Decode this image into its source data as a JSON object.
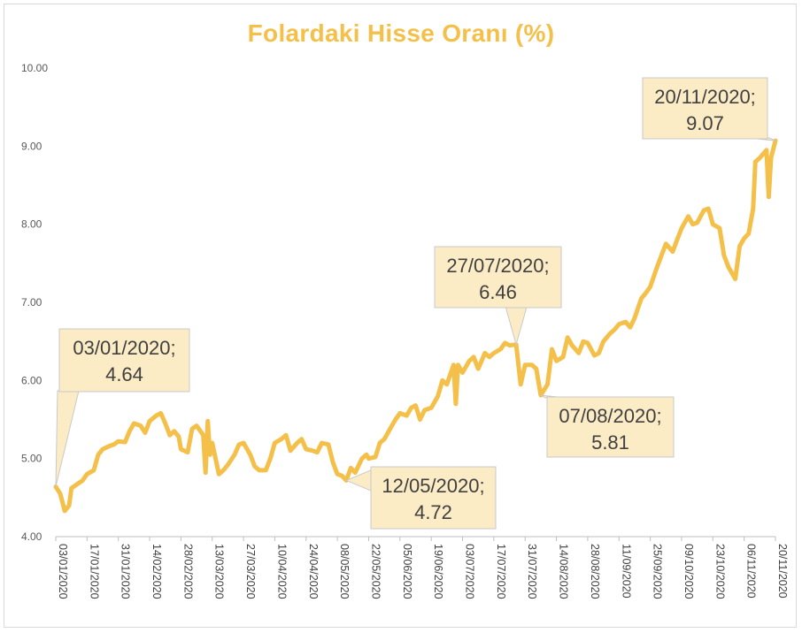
{
  "chart_data": {
    "type": "line",
    "title": "Folardaki Hisse Oranı (%)",
    "xlabel": "",
    "ylabel": "",
    "ylim": [
      4.0,
      10.0
    ],
    "yticks": [
      "4.00",
      "5.00",
      "6.00",
      "7.00",
      "8.00",
      "9.00",
      "10.00"
    ],
    "xticks": [
      "03/01/2020",
      "17/01/2020",
      "31/01/2020",
      "14/02/2020",
      "28/02/2020",
      "13/03/2020",
      "27/03/2020",
      "10/04/2020",
      "24/04/2020",
      "08/05/2020",
      "22/05/2020",
      "05/06/2020",
      "19/06/2020",
      "03/07/2020",
      "17/07/2020",
      "31/07/2020",
      "14/08/2020",
      "28/08/2020",
      "11/09/2020",
      "25/09/2020",
      "09/10/2020",
      "23/10/2020",
      "06/11/2020",
      "20/11/2020"
    ],
    "grid": false,
    "line_color": "#f4c04a",
    "series": [
      {
        "points": [
          [
            "03/01/2020",
            4.64
          ],
          [
            "05/01/2020",
            4.55
          ],
          [
            "07/01/2020",
            4.33
          ],
          [
            "09/01/2020",
            4.4
          ],
          [
            "10/01/2020",
            4.62
          ],
          [
            "13/01/2020",
            4.68
          ],
          [
            "15/01/2020",
            4.72
          ],
          [
            "17/01/2020",
            4.8
          ],
          [
            "20/01/2020",
            4.85
          ],
          [
            "22/01/2020",
            5.05
          ],
          [
            "24/01/2020",
            5.12
          ],
          [
            "27/01/2020",
            5.16
          ],
          [
            "29/01/2020",
            5.18
          ],
          [
            "31/01/2020",
            5.22
          ],
          [
            "03/02/2020",
            5.21
          ],
          [
            "05/02/2020",
            5.35
          ],
          [
            "07/02/2020",
            5.45
          ],
          [
            "10/02/2020",
            5.42
          ],
          [
            "12/02/2020",
            5.33
          ],
          [
            "14/02/2020",
            5.48
          ],
          [
            "17/02/2020",
            5.55
          ],
          [
            "19/02/2020",
            5.58
          ],
          [
            "21/02/2020",
            5.45
          ],
          [
            "23/02/2020",
            5.3
          ],
          [
            "25/02/2020",
            5.35
          ],
          [
            "27/02/2020",
            5.28
          ],
          [
            "28/02/2020",
            5.12
          ],
          [
            "02/03/2020",
            5.08
          ],
          [
            "04/03/2020",
            5.38
          ],
          [
            "06/03/2020",
            5.42
          ],
          [
            "09/03/2020",
            5.3
          ],
          [
            "10/03/2020",
            4.82
          ],
          [
            "11/03/2020",
            5.48
          ],
          [
            "12/03/2020",
            5.05
          ],
          [
            "13/03/2020",
            5.2
          ],
          [
            "16/03/2020",
            4.8
          ],
          [
            "18/03/2020",
            4.85
          ],
          [
            "20/03/2020",
            4.92
          ],
          [
            "23/03/2020",
            5.05
          ],
          [
            "25/03/2020",
            5.18
          ],
          [
            "27/03/2020",
            5.2
          ],
          [
            "30/03/2020",
            5.05
          ],
          [
            "01/04/2020",
            4.9
          ],
          [
            "03/04/2020",
            4.85
          ],
          [
            "06/04/2020",
            4.85
          ],
          [
            "08/04/2020",
            5.0
          ],
          [
            "10/04/2020",
            5.2
          ],
          [
            "13/04/2020",
            5.25
          ],
          [
            "15/04/2020",
            5.3
          ],
          [
            "17/04/2020",
            5.1
          ],
          [
            "20/04/2020",
            5.2
          ],
          [
            "22/04/2020",
            5.25
          ],
          [
            "24/04/2020",
            5.12
          ],
          [
            "27/04/2020",
            5.1
          ],
          [
            "29/04/2020",
            5.08
          ],
          [
            "01/05/2020",
            5.2
          ],
          [
            "04/05/2020",
            5.18
          ],
          [
            "06/05/2020",
            4.95
          ],
          [
            "08/05/2020",
            4.8
          ],
          [
            "10/05/2020",
            4.78
          ],
          [
            "12/05/2020",
            4.72
          ],
          [
            "14/05/2020",
            4.88
          ],
          [
            "16/05/2020",
            4.82
          ],
          [
            "19/05/2020",
            5.0
          ],
          [
            "21/05/2020",
            5.05
          ],
          [
            "22/05/2020",
            5.0
          ],
          [
            "25/05/2020",
            5.02
          ],
          [
            "27/05/2020",
            5.2
          ],
          [
            "29/05/2020",
            5.25
          ],
          [
            "01/06/2020",
            5.4
          ],
          [
            "03/06/2020",
            5.5
          ],
          [
            "05/06/2020",
            5.58
          ],
          [
            "08/06/2020",
            5.55
          ],
          [
            "10/06/2020",
            5.65
          ],
          [
            "12/06/2020",
            5.68
          ],
          [
            "14/06/2020",
            5.5
          ],
          [
            "16/06/2020",
            5.62
          ],
          [
            "19/06/2020",
            5.65
          ],
          [
            "22/06/2020",
            5.8
          ],
          [
            "24/06/2020",
            6.0
          ],
          [
            "26/06/2020",
            5.95
          ],
          [
            "29/06/2020",
            6.2
          ],
          [
            "30/06/2020",
            5.7
          ],
          [
            "01/07/2020",
            6.2
          ],
          [
            "03/07/2020",
            6.1
          ],
          [
            "06/07/2020",
            6.25
          ],
          [
            "08/07/2020",
            6.3
          ],
          [
            "10/07/2020",
            6.15
          ],
          [
            "13/07/2020",
            6.35
          ],
          [
            "15/07/2020",
            6.3
          ],
          [
            "17/07/2020",
            6.35
          ],
          [
            "20/07/2020",
            6.4
          ],
          [
            "22/07/2020",
            6.48
          ],
          [
            "24/07/2020",
            6.45
          ],
          [
            "27/07/2020",
            6.46
          ],
          [
            "29/07/2020",
            5.95
          ],
          [
            "31/07/2020",
            6.2
          ],
          [
            "03/08/2020",
            6.2
          ],
          [
            "05/08/2020",
            6.15
          ],
          [
            "07/08/2020",
            5.81
          ],
          [
            "10/08/2020",
            5.95
          ],
          [
            "12/08/2020",
            6.4
          ],
          [
            "14/08/2020",
            6.25
          ],
          [
            "17/08/2020",
            6.3
          ],
          [
            "19/08/2020",
            6.55
          ],
          [
            "21/08/2020",
            6.45
          ],
          [
            "24/08/2020",
            6.35
          ],
          [
            "26/08/2020",
            6.5
          ],
          [
            "28/08/2020",
            6.48
          ],
          [
            "31/08/2020",
            6.32
          ],
          [
            "02/09/2020",
            6.35
          ],
          [
            "04/09/2020",
            6.5
          ],
          [
            "07/09/2020",
            6.6
          ],
          [
            "09/09/2020",
            6.65
          ],
          [
            "11/09/2020",
            6.72
          ],
          [
            "14/09/2020",
            6.75
          ],
          [
            "16/09/2020",
            6.68
          ],
          [
            "18/09/2020",
            6.8
          ],
          [
            "21/09/2020",
            7.05
          ],
          [
            "23/09/2020",
            7.12
          ],
          [
            "25/09/2020",
            7.2
          ],
          [
            "28/09/2020",
            7.45
          ],
          [
            "30/09/2020",
            7.6
          ],
          [
            "02/10/2020",
            7.75
          ],
          [
            "05/10/2020",
            7.65
          ],
          [
            "07/10/2020",
            7.8
          ],
          [
            "09/10/2020",
            7.95
          ],
          [
            "12/10/2020",
            8.1
          ],
          [
            "14/10/2020",
            8.0
          ],
          [
            "16/10/2020",
            8.02
          ],
          [
            "19/10/2020",
            8.18
          ],
          [
            "21/10/2020",
            8.2
          ],
          [
            "23/10/2020",
            8.0
          ],
          [
            "26/10/2020",
            7.95
          ],
          [
            "28/10/2020",
            7.6
          ],
          [
            "30/10/2020",
            7.45
          ],
          [
            "02/11/2020",
            7.3
          ],
          [
            "04/11/2020",
            7.72
          ],
          [
            "06/11/2020",
            7.82
          ],
          [
            "08/11/2020",
            7.88
          ],
          [
            "10/11/2020",
            8.2
          ],
          [
            "11/11/2020",
            8.8
          ],
          [
            "13/11/2020",
            8.85
          ],
          [
            "16/11/2020",
            8.95
          ],
          [
            "17/11/2020",
            8.35
          ],
          [
            "18/11/2020",
            8.85
          ],
          [
            "20/11/2020",
            9.07
          ]
        ]
      }
    ],
    "annotations": [
      {
        "date": "03/01/2020",
        "line1": "03/01/2020;",
        "line2": "4.64"
      },
      {
        "date": "12/05/2020",
        "line1": "12/05/2020;",
        "line2": "4.72"
      },
      {
        "date": "27/07/2020",
        "line1": "27/07/2020;",
        "line2": "6.46"
      },
      {
        "date": "07/08/2020",
        "line1": "07/08/2020;",
        "line2": "5.81"
      },
      {
        "date": "20/11/2020",
        "line1": "20/11/2020;",
        "line2": "9.07"
      }
    ]
  }
}
